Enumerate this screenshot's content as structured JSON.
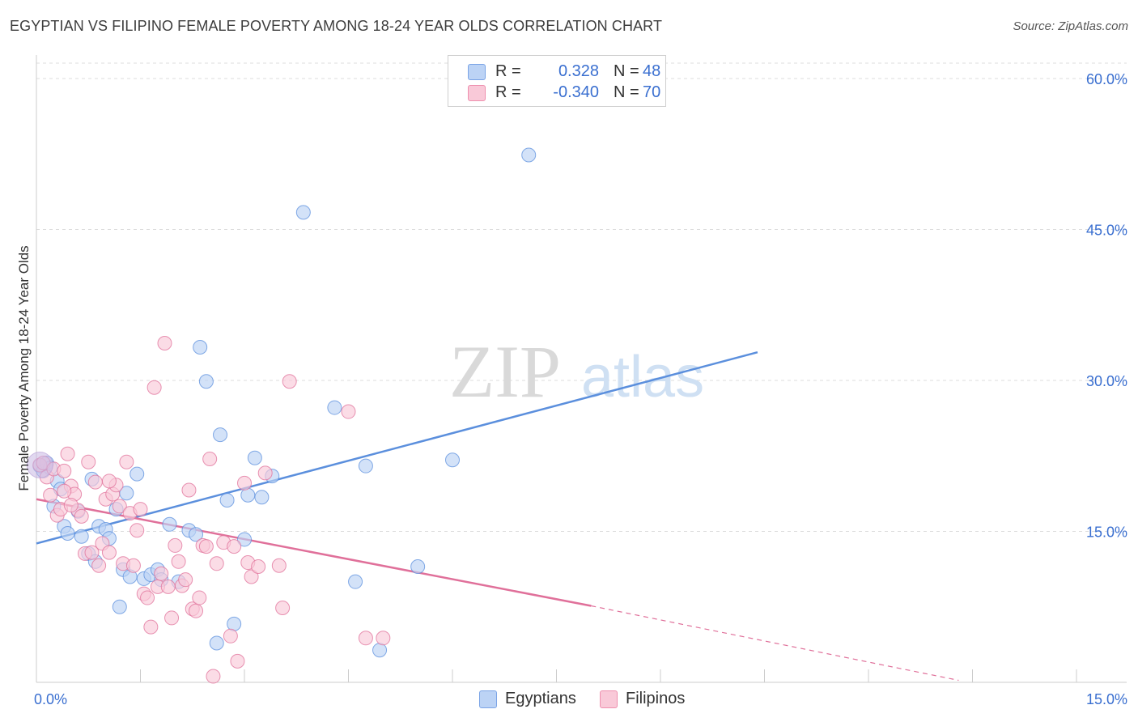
{
  "title": "EGYPTIAN VS FILIPINO FEMALE POVERTY AMONG 18-24 YEAR OLDS CORRELATION CHART",
  "source": "Source: ZipAtlas.com",
  "watermark": {
    "zip": "ZIP",
    "atlas": "atlas"
  },
  "legend": {
    "r_label": "R =",
    "n_label": "N =",
    "rows": [
      {
        "r": "0.328",
        "n": "48",
        "fill": "#bcd3f5",
        "stroke": "#7ba4e6"
      },
      {
        "r": "-0.340",
        "n": "70",
        "fill": "#f9c9d8",
        "stroke": "#ee8fae"
      }
    ]
  },
  "bottom_legend": [
    {
      "label": "Egyptians",
      "fill": "#bcd3f5",
      "stroke": "#7ba4e6"
    },
    {
      "label": "Filipinos",
      "fill": "#f9c9d8",
      "stroke": "#ee8fae"
    }
  ],
  "chart_data": {
    "type": "scatter",
    "title": "EGYPTIAN VS FILIPINO FEMALE POVERTY AMONG 18-24 YEAR OLDS CORRELATION CHART",
    "xlabel": "",
    "ylabel": "Female Poverty Among 18-24 Year Olds",
    "xlim": [
      0,
      15
    ],
    "ylim": [
      0,
      60
    ],
    "x_tick_labels": [
      "0.0%",
      "15.0%"
    ],
    "y_tick_labels": [
      "15.0%",
      "30.0%",
      "45.0%",
      "60.0%"
    ],
    "y_ticks": [
      15,
      30,
      45,
      60
    ],
    "grid": true,
    "legend_position": "top-center",
    "series": [
      {
        "name": "Egyptians",
        "color": "#5b8fdd",
        "fill": "#bcd3f5",
        "points": [
          [
            0.05,
            21.5
          ],
          [
            0.1,
            21.0
          ],
          [
            0.15,
            21.8
          ],
          [
            0.2,
            21.3
          ],
          [
            0.25,
            17.5
          ],
          [
            0.3,
            20.0
          ],
          [
            0.35,
            19.2
          ],
          [
            0.4,
            15.5
          ],
          [
            0.45,
            14.8
          ],
          [
            0.6,
            17.0
          ],
          [
            0.65,
            14.5
          ],
          [
            0.75,
            12.8
          ],
          [
            0.8,
            20.2
          ],
          [
            0.85,
            12.0
          ],
          [
            0.9,
            15.5
          ],
          [
            1.0,
            15.2
          ],
          [
            1.05,
            14.3
          ],
          [
            1.15,
            17.2
          ],
          [
            1.2,
            7.5
          ],
          [
            1.25,
            11.2
          ],
          [
            1.3,
            18.8
          ],
          [
            1.35,
            10.5
          ],
          [
            1.45,
            20.7
          ],
          [
            1.55,
            10.3
          ],
          [
            1.65,
            10.7
          ],
          [
            1.75,
            11.2
          ],
          [
            1.8,
            10.2
          ],
          [
            1.92,
            15.7
          ],
          [
            2.05,
            10.0
          ],
          [
            2.2,
            15.1
          ],
          [
            2.3,
            14.7
          ],
          [
            2.36,
            33.3
          ],
          [
            2.45,
            29.9
          ],
          [
            2.6,
            3.9
          ],
          [
            2.65,
            24.6
          ],
          [
            2.75,
            18.1
          ],
          [
            2.85,
            5.8
          ],
          [
            3.0,
            14.2
          ],
          [
            3.05,
            18.6
          ],
          [
            3.15,
            22.3
          ],
          [
            3.25,
            18.4
          ],
          [
            3.4,
            20.5
          ],
          [
            3.85,
            46.7
          ],
          [
            4.3,
            27.3
          ],
          [
            4.6,
            10.0
          ],
          [
            4.75,
            21.5
          ],
          [
            4.95,
            3.2
          ],
          [
            5.5,
            11.5
          ],
          [
            6.0,
            22.1
          ],
          [
            7.1,
            52.4
          ]
        ],
        "trend": {
          "x0": 0,
          "y0": 13.8,
          "x1": 10.4,
          "y1": 32.8
        }
      },
      {
        "name": "Filipinos",
        "color": "#e0709a",
        "fill": "#f9c9d8",
        "points": [
          [
            0.05,
            21.6
          ],
          [
            0.1,
            21.8
          ],
          [
            0.15,
            20.4
          ],
          [
            0.2,
            18.6
          ],
          [
            0.25,
            21.2
          ],
          [
            0.3,
            16.6
          ],
          [
            0.35,
            17.2
          ],
          [
            0.4,
            21.0
          ],
          [
            0.45,
            22.7
          ],
          [
            0.5,
            19.5
          ],
          [
            0.55,
            18.7
          ],
          [
            0.6,
            17.1
          ],
          [
            0.65,
            16.5
          ],
          [
            0.7,
            12.8
          ],
          [
            0.75,
            21.9
          ],
          [
            0.8,
            12.9
          ],
          [
            0.85,
            19.9
          ],
          [
            0.9,
            11.6
          ],
          [
            0.95,
            13.8
          ],
          [
            1.0,
            18.2
          ],
          [
            1.05,
            12.9
          ],
          [
            1.1,
            18.7
          ],
          [
            1.15,
            19.6
          ],
          [
            1.2,
            17.5
          ],
          [
            1.25,
            11.8
          ],
          [
            1.3,
            21.9
          ],
          [
            1.35,
            16.8
          ],
          [
            1.4,
            11.6
          ],
          [
            1.45,
            15.1
          ],
          [
            1.5,
            17.2
          ],
          [
            1.55,
            8.8
          ],
          [
            1.6,
            8.4
          ],
          [
            1.65,
            5.5
          ],
          [
            1.7,
            29.3
          ],
          [
            1.75,
            9.5
          ],
          [
            1.8,
            10.8
          ],
          [
            1.85,
            33.7
          ],
          [
            1.9,
            9.5
          ],
          [
            1.95,
            6.4
          ],
          [
            2.0,
            13.6
          ],
          [
            2.05,
            12.0
          ],
          [
            2.1,
            9.6
          ],
          [
            2.15,
            10.2
          ],
          [
            2.2,
            19.1
          ],
          [
            2.25,
            7.3
          ],
          [
            2.3,
            7.1
          ],
          [
            2.35,
            8.4
          ],
          [
            2.4,
            13.6
          ],
          [
            2.45,
            13.5
          ],
          [
            2.5,
            22.2
          ],
          [
            2.55,
            0.6
          ],
          [
            2.6,
            11.8
          ],
          [
            2.7,
            13.9
          ],
          [
            2.8,
            4.6
          ],
          [
            2.85,
            13.5
          ],
          [
            2.9,
            2.1
          ],
          [
            3.0,
            19.8
          ],
          [
            3.05,
            11.9
          ],
          [
            3.1,
            10.5
          ],
          [
            3.2,
            11.5
          ],
          [
            3.3,
            20.8
          ],
          [
            3.5,
            11.6
          ],
          [
            3.55,
            7.4
          ],
          [
            3.65,
            29.9
          ],
          [
            4.5,
            26.9
          ],
          [
            4.75,
            4.4
          ],
          [
            5.0,
            4.4
          ],
          [
            1.05,
            20.0
          ],
          [
            0.5,
            17.6
          ],
          [
            0.4,
            19.0
          ]
        ],
        "trend": {
          "x0": 0,
          "y0": 18.2,
          "x1": 8.0,
          "y1": 7.6
        },
        "trend_extension": {
          "x0": 8.0,
          "y0": 7.6,
          "x1": 13.3,
          "y1": 0.2
        }
      }
    ]
  }
}
